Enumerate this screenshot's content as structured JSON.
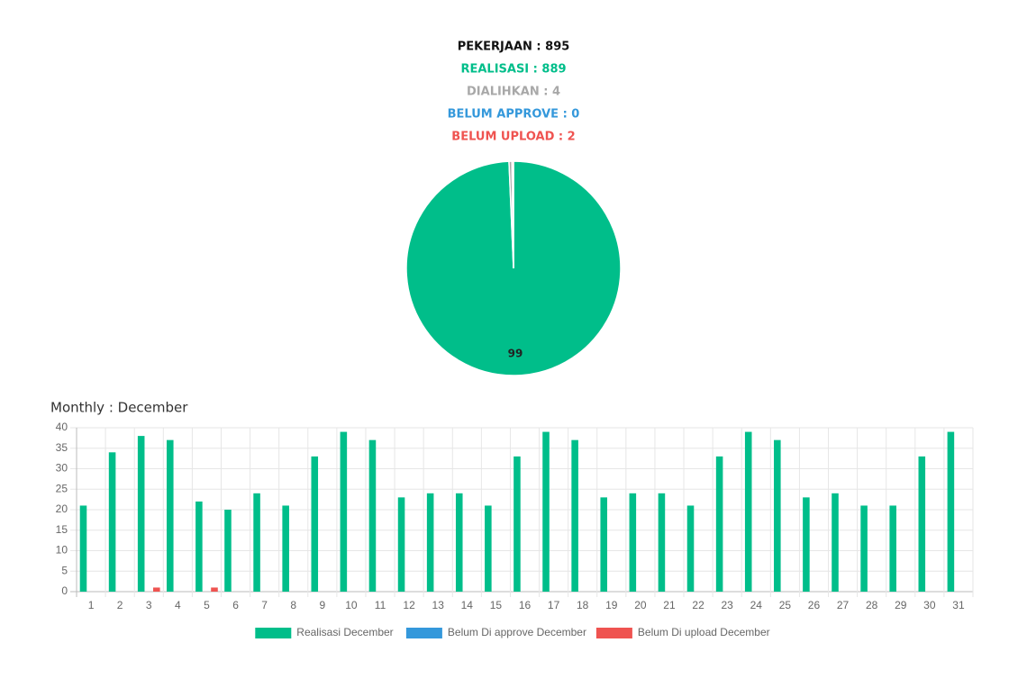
{
  "summary": [
    {
      "text": "PEKERJAAN : 895",
      "color": "#111111"
    },
    {
      "text": "REALISASI : 889",
      "color": "#00be8a"
    },
    {
      "text": "DIALIHKAN : 4",
      "color": "#a8a8a8"
    },
    {
      "text": "BELUM APPROVE : 0",
      "color": "#3498db"
    },
    {
      "text": "BELUM UPLOAD : 2",
      "color": "#ef5350"
    }
  ],
  "chart_data": [
    {
      "type": "pie",
      "values": [
        99.33,
        0.45,
        0,
        0.22
      ],
      "value_labels": [
        "99",
        null,
        null,
        null
      ],
      "colors": [
        "#00be8a",
        "#a8a8a8",
        "#3498db",
        "#ef5350"
      ]
    },
    {
      "type": "bar",
      "title": "Monthly : December",
      "categories": [
        "1",
        "2",
        "3",
        "4",
        "5",
        "6",
        "7",
        "8",
        "9",
        "10",
        "11",
        "12",
        "13",
        "14",
        "15",
        "16",
        "17",
        "18",
        "19",
        "20",
        "21",
        "22",
        "23",
        "24",
        "25",
        "26",
        "27",
        "28",
        "29",
        "30",
        "31"
      ],
      "series": [
        {
          "name": "Realisasi December",
          "color": "#00be8a",
          "values": [
            21,
            34,
            38,
            37,
            22,
            20,
            24,
            21,
            33,
            39,
            37,
            23,
            24,
            24,
            21,
            33,
            39,
            37,
            23,
            24,
            24,
            21,
            33,
            39,
            37,
            23,
            24,
            21,
            21,
            33,
            39
          ]
        },
        {
          "name": "Belum Di approve December",
          "color": "#3498db",
          "values": [
            0,
            0,
            0,
            0,
            0,
            0,
            0,
            0,
            0,
            0,
            0,
            0,
            0,
            0,
            0,
            0,
            0,
            0,
            0,
            0,
            0,
            0,
            0,
            0,
            0,
            0,
            0,
            0,
            0,
            0,
            0
          ]
        },
        {
          "name": "Belum Di upload December",
          "color": "#ef5350",
          "values": [
            0,
            0,
            1,
            0,
            1,
            0,
            0,
            0,
            0,
            0,
            0,
            0,
            0,
            0,
            0,
            0,
            0,
            0,
            0,
            0,
            0,
            0,
            0,
            0,
            0,
            0,
            0,
            0,
            0,
            0,
            0
          ]
        }
      ],
      "ylim": [
        0,
        40
      ],
      "yticks": [
        0,
        5,
        10,
        15,
        20,
        25,
        30,
        35,
        40
      ],
      "grid": true,
      "legend": "bottom"
    }
  ]
}
